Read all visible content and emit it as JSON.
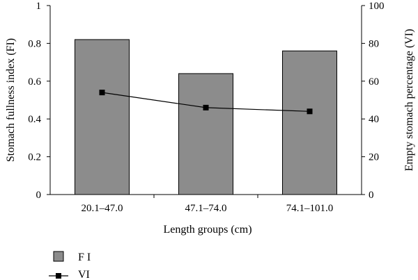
{
  "chart_data": {
    "type": "bar",
    "xlabel": "Length groups (cm)",
    "ylabel": "Stomach fullness index (FI)",
    "y2label": "Empty stomach percentage (VI)",
    "categories": [
      "20.1–47.0",
      "47.1–74.0",
      "74.1–101.0"
    ],
    "ylim": [
      0,
      1
    ],
    "y2lim": [
      0,
      100
    ],
    "yticks": [
      0,
      0.2,
      0.4,
      0.6,
      0.8,
      1
    ],
    "y2ticks": [
      0,
      20,
      40,
      60,
      80,
      100
    ],
    "ytick_labels": [
      "0",
      "0.2",
      "0.4",
      "0.6",
      "0.8",
      "1"
    ],
    "y2tick_labels": [
      "0",
      "20",
      "40",
      "60",
      "80",
      "100"
    ],
    "grid": false,
    "legend_position": "bottom-left",
    "series": [
      {
        "name": "F I",
        "type": "bar",
        "axis": "left",
        "color": "#8c8c8c",
        "values": [
          0.82,
          0.64,
          0.76
        ]
      },
      {
        "name": "VI",
        "type": "line",
        "axis": "right",
        "color": "#000000",
        "values": [
          54,
          46,
          44
        ]
      }
    ]
  }
}
